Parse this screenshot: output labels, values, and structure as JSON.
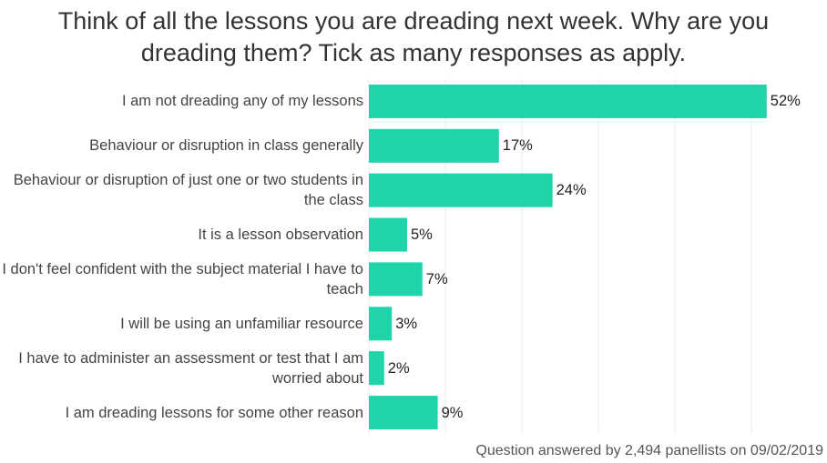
{
  "chart_data": {
    "type": "bar",
    "orientation": "horizontal",
    "title": "Think of all the lessons you are dreading next week. Why are you dreading them? Tick as many responses as apply.",
    "categories": [
      "I am not dreading any of my lessons",
      "Behaviour or disruption in class generally",
      "Behaviour or disruption of just one or two students in the class",
      "It is a lesson observation",
      "I don't feel confident with the subject material I have to teach",
      "I will be using an unfamiliar resource",
      "I have to administer an assessment or test that I am worried about",
      "I am dreading lessons for some other reason"
    ],
    "values": [
      52,
      17,
      24,
      5,
      7,
      3,
      2,
      9
    ],
    "value_labels": [
      "52%",
      "17%",
      "24%",
      "5%",
      "7%",
      "3%",
      "2%",
      "9%"
    ],
    "color": "#1fd4a8",
    "xlim": [
      0,
      60
    ],
    "xticks": [
      0,
      10,
      20,
      30,
      40,
      50
    ],
    "grid": true,
    "note": "Question answered by 2,494 panellists on 09/02/2019"
  }
}
